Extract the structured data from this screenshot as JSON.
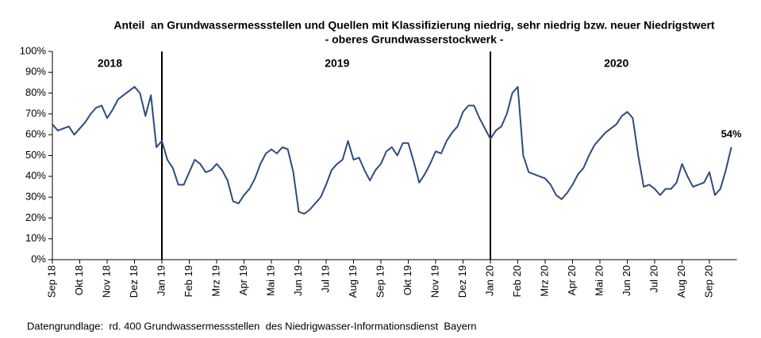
{
  "chart_data": {
    "type": "line",
    "title": "Anteil  an Grundwassermessstellen und Quellen mit Klassifizierung niedrig, sehr niedrig bzw. neuer Niedrigstwert",
    "subtitle": "- oberes Grundwasserstockwerk -",
    "footnote": "Datengrundlage:  rd. 400 Grundwassermessstellen  des Niedrigwasser-Informationsdienst  Bayern",
    "color": "#2f4b7c",
    "x": [
      0,
      0.2,
      0.4,
      0.6,
      0.8,
      1,
      1.2,
      1.4,
      1.6,
      1.8,
      2,
      2.2,
      2.4,
      2.6,
      2.8,
      3,
      3.2,
      3.4,
      3.6,
      3.8,
      4,
      4.2,
      4.4,
      4.6,
      4.8,
      5,
      5.2,
      5.4,
      5.6,
      5.8,
      6,
      6.2,
      6.4,
      6.6,
      6.8,
      7,
      7.2,
      7.4,
      7.6,
      7.8,
      8,
      8.2,
      8.4,
      8.6,
      8.8,
      9,
      9.2,
      9.4,
      9.6,
      9.8,
      10,
      10.2,
      10.4,
      10.6,
      10.8,
      11,
      11.2,
      11.4,
      11.6,
      11.8,
      12,
      12.2,
      12.4,
      12.6,
      12.8,
      13,
      13.2,
      13.4,
      13.6,
      13.8,
      14,
      14.2,
      14.4,
      14.6,
      14.8,
      15,
      15.2,
      15.4,
      15.6,
      15.8,
      16,
      16.2,
      16.4,
      16.6,
      16.8,
      17,
      17.2,
      17.4,
      17.6,
      17.8,
      18,
      18.2,
      18.4,
      18.6,
      18.8,
      19,
      19.2,
      19.4,
      19.6,
      19.8,
      20,
      20.2,
      20.4,
      20.6,
      20.8,
      21,
      21.2,
      21.4,
      21.6,
      21.8,
      22,
      22.2,
      22.4,
      22.6,
      22.8,
      23,
      23.2,
      23.4,
      23.6,
      23.8,
      24,
      24.2,
      24.4,
      24.6,
      24.8
    ],
    "values": [
      65,
      62,
      63,
      64,
      60,
      63,
      66,
      70,
      73,
      74,
      68,
      72,
      77,
      79,
      81,
      83,
      80,
      69,
      79,
      54,
      57,
      48,
      44,
      36,
      36,
      42,
      48,
      46,
      42,
      43,
      46,
      43,
      38,
      28,
      27,
      31,
      34,
      39,
      46,
      51,
      53,
      51,
      54,
      53,
      42,
      23,
      22,
      24,
      27,
      30,
      36,
      43,
      46,
      48,
      57,
      48,
      49,
      43,
      38,
      43,
      46,
      52,
      54,
      50,
      56,
      56,
      47,
      37,
      41,
      46,
      52,
      51,
      57,
      61,
      64,
      71,
      74,
      74,
      68,
      63,
      58,
      62,
      64,
      70,
      80,
      83,
      50,
      42,
      41,
      40,
      39,
      36,
      31,
      29,
      32,
      36,
      41,
      44,
      50,
      55,
      58,
      61,
      63,
      65,
      69,
      71,
      68,
      50,
      35,
      36,
      34,
      31,
      34,
      34,
      37,
      46,
      40,
      35,
      36,
      37,
      42,
      31,
      34,
      43,
      54
    ],
    "xlim": [
      0,
      25
    ],
    "xticks": [
      {
        "value": 0,
        "label": "Sep 18"
      },
      {
        "value": 1,
        "label": "Okt 18"
      },
      {
        "value": 2,
        "label": "Nov 18"
      },
      {
        "value": 3,
        "label": "Dez 18"
      },
      {
        "value": 4,
        "label": "Jan 19"
      },
      {
        "value": 5,
        "label": "Feb 19"
      },
      {
        "value": 6,
        "label": "Mrz 19"
      },
      {
        "value": 7,
        "label": "Apr 19"
      },
      {
        "value": 8,
        "label": "Mai 19"
      },
      {
        "value": 9,
        "label": "Jun 19"
      },
      {
        "value": 10,
        "label": "Jul 19"
      },
      {
        "value": 11,
        "label": "Aug 19"
      },
      {
        "value": 12,
        "label": "Sep 19"
      },
      {
        "value": 13,
        "label": "Okt 19"
      },
      {
        "value": 14,
        "label": "Nov 19"
      },
      {
        "value": 15,
        "label": "Dez 19"
      },
      {
        "value": 16,
        "label": "Jan 20"
      },
      {
        "value": 17,
        "label": "Feb 20"
      },
      {
        "value": 18,
        "label": "Mrz 20"
      },
      {
        "value": 19,
        "label": "Apr 20"
      },
      {
        "value": 20,
        "label": "Mai 20"
      },
      {
        "value": 21,
        "label": "Jun 20"
      },
      {
        "value": 22,
        "label": "Jul 20"
      },
      {
        "value": 23,
        "label": "Aug 20"
      },
      {
        "value": 24,
        "label": "Sep 20"
      }
    ],
    "ylim": [
      0,
      100
    ],
    "yticks": [
      {
        "value": 0,
        "label": "0%"
      },
      {
        "value": 10,
        "label": "10%"
      },
      {
        "value": 20,
        "label": "20%"
      },
      {
        "value": 30,
        "label": "30%"
      },
      {
        "value": 40,
        "label": "40%"
      },
      {
        "value": 50,
        "label": "50%"
      },
      {
        "value": 60,
        "label": "60%"
      },
      {
        "value": 70,
        "label": "70%"
      },
      {
        "value": 80,
        "label": "80%"
      },
      {
        "value": 90,
        "label": "90%"
      },
      {
        "value": 100,
        "label": "100%"
      }
    ],
    "vlines": [
      4,
      16
    ],
    "years": [
      {
        "text": "2018",
        "x": 2.1,
        "y": 94
      },
      {
        "text": "2019",
        "x": 10.4,
        "y": 94
      },
      {
        "text": "2020",
        "x": 20.6,
        "y": 94
      }
    ],
    "annotations": [
      {
        "text": "54%",
        "x": 24.8,
        "y": 54
      }
    ],
    "annotation_color": "#3a64a8"
  }
}
